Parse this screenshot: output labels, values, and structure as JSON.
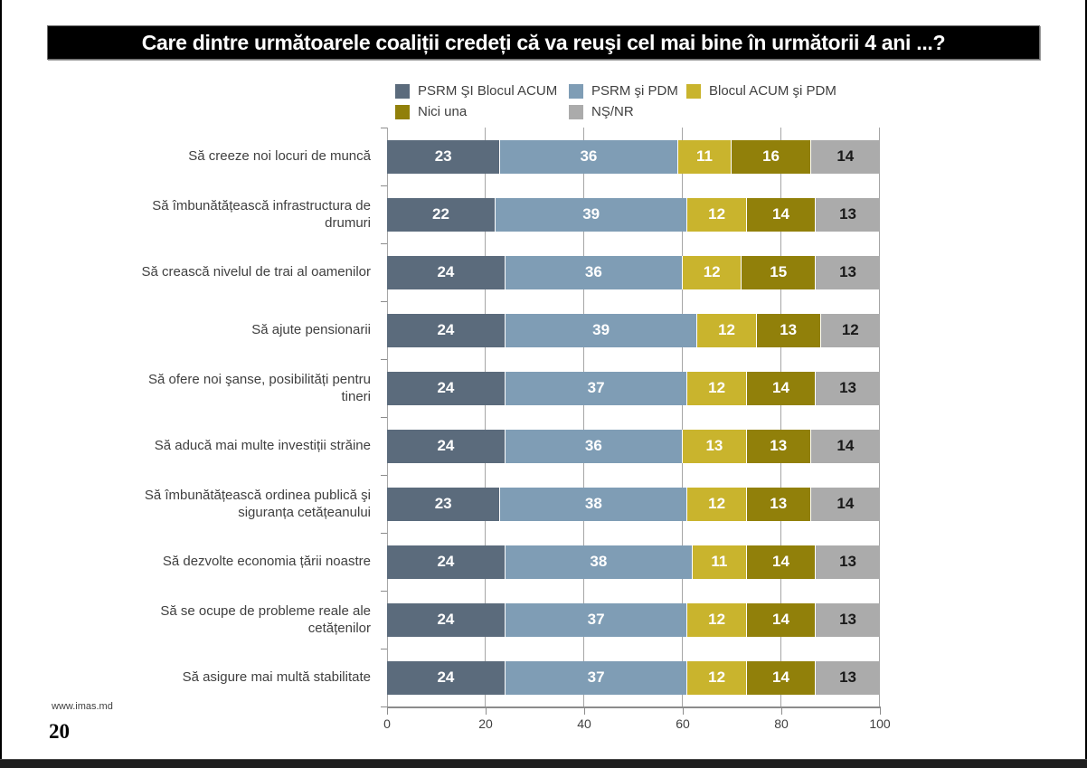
{
  "page": {
    "title": "Care dintre următoarele coaliții credeți că va reuşi cel mai bine în următorii 4 ani ...?",
    "source": "www.imas.md",
    "page_number": "20"
  },
  "chart_data": {
    "type": "bar",
    "orientation": "horizontal",
    "stacked": true,
    "grid": "vertical",
    "legend_position": "top",
    "xlim": [
      0,
      100
    ],
    "x_ticks": [
      0,
      20,
      40,
      60,
      80,
      100
    ],
    "categories": [
      "Să creeze noi locuri de muncă",
      "Să îmbunătățească infrastructura de drumuri",
      "Să crească nivelul de trai al oamenilor",
      "Să ajute pensionarii",
      "Să ofere noi şanse, posibilități pentru tineri",
      "Să aducă mai multe investiții străine",
      "Să îmbunătățească ordinea publică şi siguranța cetățeanului",
      "Să dezvolte economia țării noastre",
      "Să se ocupe de probleme reale ale cetățenilor",
      "Să asigure mai multă stabilitate"
    ],
    "series": [
      {
        "name": "PSRM ŞI Blocul ACUM",
        "color": "#5b6b7c",
        "label_color": "#ffffff",
        "values": [
          23,
          22,
          24,
          24,
          24,
          24,
          23,
          24,
          24,
          24
        ]
      },
      {
        "name": "PSRM şi PDM",
        "color": "#7f9db5",
        "label_color": "#ffffff",
        "values": [
          36,
          39,
          36,
          39,
          37,
          36,
          38,
          38,
          37,
          37
        ]
      },
      {
        "name": "Blocul ACUM şi PDM",
        "color": "#c9b42d",
        "label_color": "#ffffff",
        "values": [
          11,
          12,
          12,
          12,
          12,
          13,
          12,
          11,
          12,
          12
        ]
      },
      {
        "name": "Nici una",
        "color": "#91800a",
        "label_color": "#ffffff",
        "values": [
          16,
          14,
          15,
          13,
          14,
          13,
          13,
          14,
          14,
          14
        ]
      },
      {
        "name": "NŞ/NR",
        "color": "#ababab",
        "label_color": "#1a1a1a",
        "values": [
          14,
          13,
          13,
          12,
          13,
          14,
          14,
          13,
          13,
          13
        ]
      }
    ]
  }
}
